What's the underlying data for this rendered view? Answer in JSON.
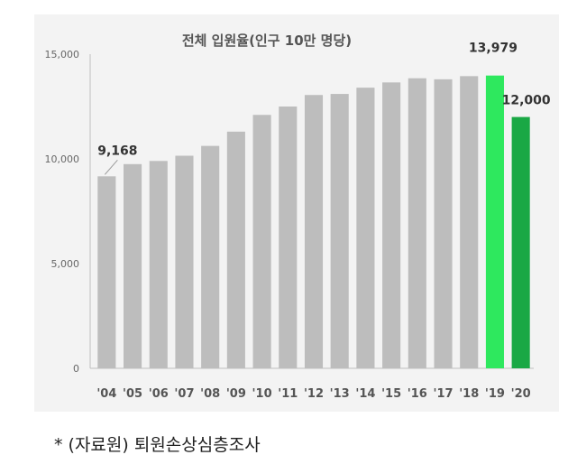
{
  "chart_data": {
    "type": "bar",
    "title": "전체 입원율(인구 10만 명당)",
    "categories": [
      "'04",
      "'05",
      "'06",
      "'07",
      "'08",
      "'09",
      "'10",
      "'11",
      "'12",
      "'13",
      "'14",
      "'15",
      "'16",
      "'17",
      "'18",
      "'19",
      "'20"
    ],
    "values": [
      9168,
      9750,
      9900,
      10150,
      10620,
      11300,
      12100,
      12500,
      13050,
      13100,
      13400,
      13650,
      13850,
      13800,
      13950,
      13979,
      12000
    ],
    "bar_colors": [
      "#bdbdbd",
      "#bdbdbd",
      "#bdbdbd",
      "#bdbdbd",
      "#bdbdbd",
      "#bdbdbd",
      "#bdbdbd",
      "#bdbdbd",
      "#bdbdbd",
      "#bdbdbd",
      "#bdbdbd",
      "#bdbdbd",
      "#bdbdbd",
      "#bdbdbd",
      "#bdbdbd",
      "#2ee85e",
      "#1aa845"
    ],
    "data_labels": [
      {
        "index": 0,
        "text": "9,168"
      },
      {
        "index": 15,
        "text": "13,979"
      },
      {
        "index": 16,
        "text": "12,000"
      }
    ],
    "y_ticks": [
      "0",
      "5,000",
      "10,000",
      "15,000"
    ],
    "y_tick_values": [
      0,
      5000,
      10000,
      15000
    ],
    "ylim": [
      0,
      15000
    ],
    "grid": false,
    "legend": "none"
  },
  "caption": "* (자료원) 퇴원손상심층조사"
}
